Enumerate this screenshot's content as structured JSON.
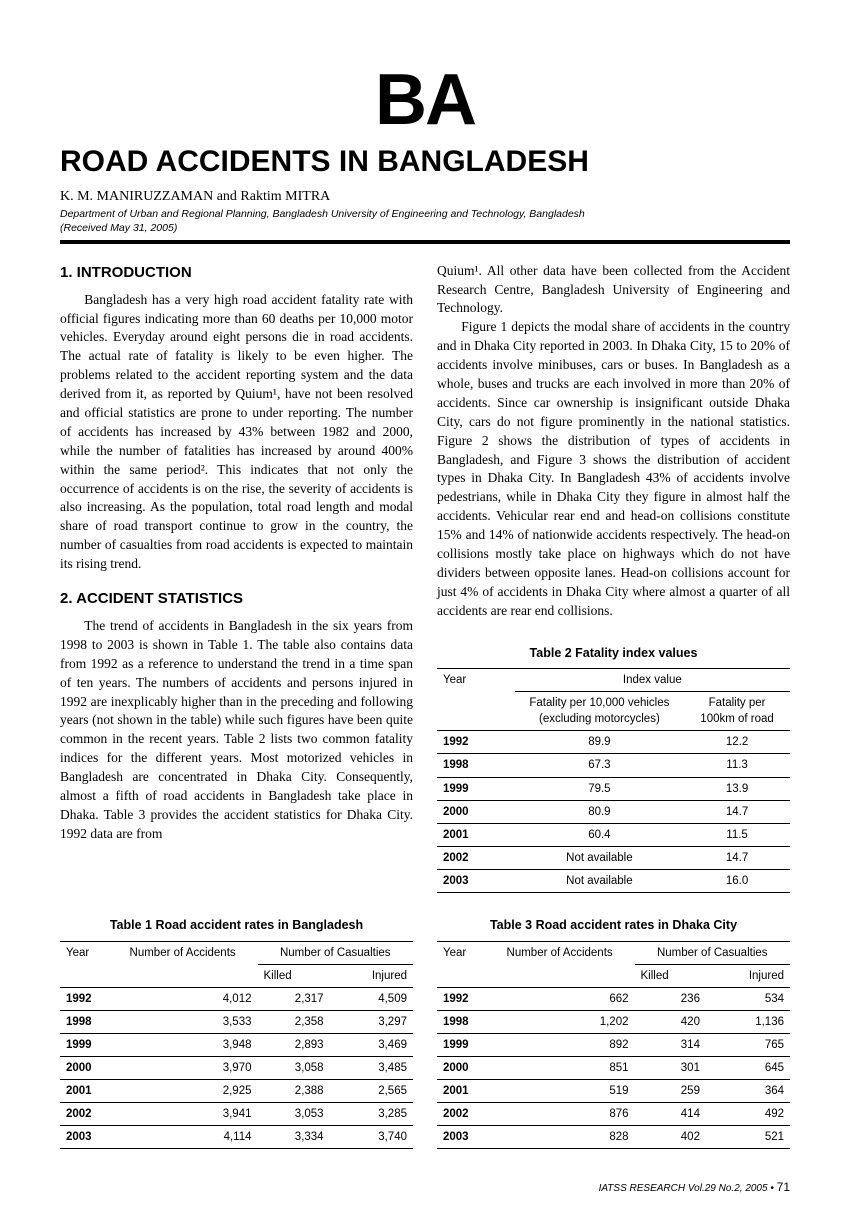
{
  "header": {
    "logo": "BA",
    "title": "ROAD ACCIDENTS IN BANGLADESH",
    "authors": "K. M. MANIRUZZAMAN and Raktim MITRA",
    "affiliation_line1": "Department of Urban and Regional Planning, Bangladesh University of Engineering and Technology, Bangladesh",
    "affiliation_line2": "(Received May 31, 2005)"
  },
  "sections": {
    "intro_heading": "1.  INTRODUCTION",
    "intro_p1": "Bangladesh has a very high road accident fatality rate with official figures indicating more than 60 deaths per 10,000 motor vehicles. Everyday around eight persons die in road accidents. The actual rate of fatality is likely to be even higher. The problems related to the accident reporting system and the data derived from it, as reported by Quium¹, have not been resolved and official statistics are prone to under reporting. The number of accidents has increased by 43% between 1982 and 2000, while the number of fatalities has increased by around 400% within the same period². This indicates that not only the occurrence of accidents is on the rise, the severity of accidents is also increasing. As the population, total road length and modal share of road transport continue to grow in the country, the number of casualties from road accidents is expected to maintain its rising trend.",
    "stats_heading": "2.  ACCIDENT STATISTICS",
    "stats_p1": "The trend of accidents in Bangladesh in the six years from 1998 to 2003 is shown in Table 1. The table also contains data from 1992 as a reference to understand the trend in a time span of ten years. The numbers of accidents and persons injured in 1992 are inexplicably higher than in the preceding and following years (not shown in the table) while such figures have been quite common in the recent years. Table 2 lists two common fatality indices for the different years. Most motorized vehicles in Bangladesh are concentrated in Dhaka City. Consequently, almost a fifth of road accidents in Bangladesh take place in Dhaka. Table 3 provides the accident statistics for Dhaka City. 1992 data are from",
    "col2_p1": "Quium¹. All other data have been collected from the Accident Research Centre, Bangladesh University of Engineering and Technology.",
    "col2_p2": "Figure 1 depicts the modal share of accidents in the country and in Dhaka City reported in 2003. In Dhaka City, 15 to 20% of accidents involve minibuses, cars or buses. In Bangladesh as a whole, buses and trucks are each involved in more than 20% of accidents. Since car ownership is insignificant outside Dhaka City, cars do not figure prominently in the national statistics. Figure 2 shows the distribution of types of accidents in Bangladesh, and Figure 3 shows the distribution of accident types in Dhaka City. In Bangladesh 43% of accidents involve pedestrians, while in Dhaka City they figure in almost half the accidents. Vehicular rear end and head-on collisions constitute 15% and 14% of nationwide accidents respectively. The head-on collisions mostly take place on highways which do not have dividers between opposite lanes. Head-on collisions account for just 4% of accidents in Dhaka City where almost a quarter of all accidents are rear end collisions."
  },
  "table1": {
    "caption": "Table 1 Road accident rates in Bangladesh",
    "h_year": "Year",
    "h_accidents": "Number of Accidents",
    "h_casualties": "Number of Casualties",
    "h_killed": "Killed",
    "h_injured": "Injured",
    "rows": [
      {
        "year": "1992",
        "acc": "4,012",
        "killed": "2,317",
        "injured": "4,509"
      },
      {
        "year": "1998",
        "acc": "3,533",
        "killed": "2,358",
        "injured": "3,297"
      },
      {
        "year": "1999",
        "acc": "3,948",
        "killed": "2,893",
        "injured": "3,469"
      },
      {
        "year": "2000",
        "acc": "3,970",
        "killed": "3,058",
        "injured": "3,485"
      },
      {
        "year": "2001",
        "acc": "2,925",
        "killed": "2,388",
        "injured": "2,565"
      },
      {
        "year": "2002",
        "acc": "3,941",
        "killed": "3,053",
        "injured": "3,285"
      },
      {
        "year": "2003",
        "acc": "4,114",
        "killed": "3,334",
        "injured": "3,740"
      }
    ]
  },
  "table2": {
    "caption": "Table 2 Fatality index values",
    "h_year": "Year",
    "h_index": "Index value",
    "h_per_vehicles": "Fatality per 10,000 vehicles (excluding motorcycles)",
    "h_per_km": "Fatality per 100km of road",
    "rows": [
      {
        "year": "1992",
        "v1": "89.9",
        "v2": "12.2"
      },
      {
        "year": "1998",
        "v1": "67.3",
        "v2": "11.3"
      },
      {
        "year": "1999",
        "v1": "79.5",
        "v2": "13.9"
      },
      {
        "year": "2000",
        "v1": "80.9",
        "v2": "14.7"
      },
      {
        "year": "2001",
        "v1": "60.4",
        "v2": "11.5"
      },
      {
        "year": "2002",
        "v1": "Not available",
        "v2": "14.7"
      },
      {
        "year": "2003",
        "v1": "Not available",
        "v2": "16.0"
      }
    ]
  },
  "table3": {
    "caption": "Table 3 Road accident rates in Dhaka City",
    "h_year": "Year",
    "h_accidents": "Number of Accidents",
    "h_casualties": "Number of Casualties",
    "h_killed": "Killed",
    "h_injured": "Injured",
    "rows": [
      {
        "year": "1992",
        "acc": "662",
        "killed": "236",
        "injured": "534"
      },
      {
        "year": "1998",
        "acc": "1,202",
        "killed": "420",
        "injured": "1,136"
      },
      {
        "year": "1999",
        "acc": "892",
        "killed": "314",
        "injured": "765"
      },
      {
        "year": "2000",
        "acc": "851",
        "killed": "301",
        "injured": "645"
      },
      {
        "year": "2001",
        "acc": "519",
        "killed": "259",
        "injured": "364"
      },
      {
        "year": "2002",
        "acc": "876",
        "killed": "414",
        "injured": "492"
      },
      {
        "year": "2003",
        "acc": "828",
        "killed": "402",
        "injured": "521"
      }
    ]
  },
  "footer": {
    "journal": "IATSS RESEARCH Vol.29 No.2, 2005",
    "bullet": "•",
    "page": "71"
  }
}
